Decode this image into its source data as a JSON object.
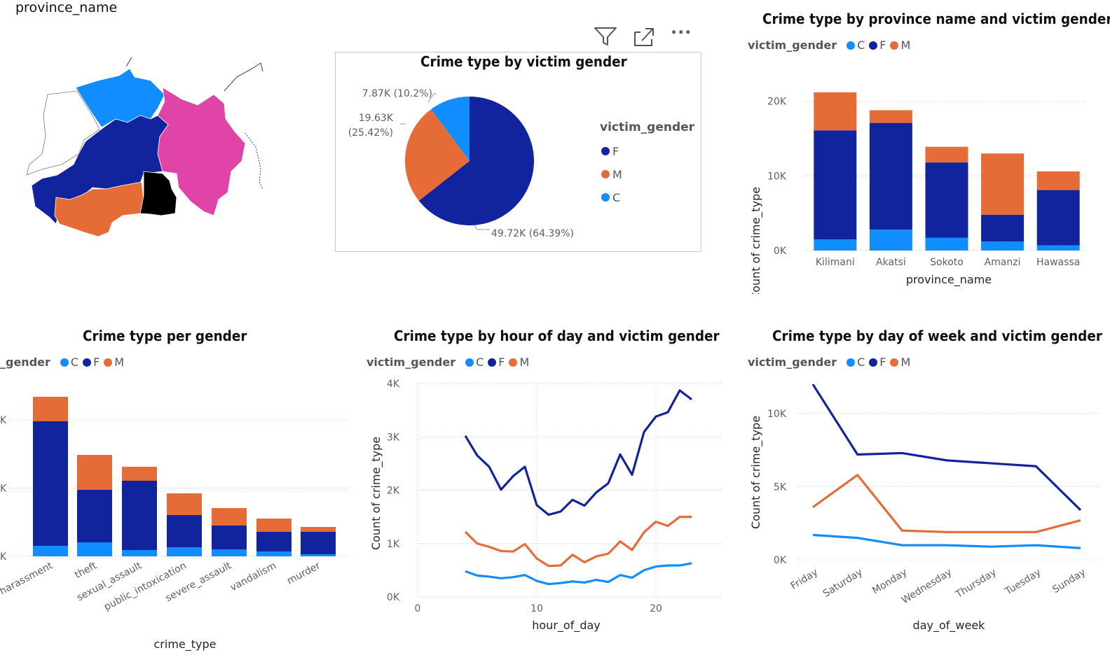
{
  "colors": {
    "C": "#118dff",
    "F": "#12239e",
    "M": "#e66c37",
    "grid": "#c8c6c4"
  },
  "map": {
    "title": "province_name",
    "regions": [
      {
        "name": "light-blue-region",
        "color": "#118dff"
      },
      {
        "name": "magenta-region",
        "color": "#e044a7"
      },
      {
        "name": "dark-blue-region",
        "color": "#12239e"
      },
      {
        "name": "orange-region",
        "color": "#e66c37"
      },
      {
        "name": "black-region",
        "color": "#000000"
      },
      {
        "name": "white-region",
        "color": "#ffffff"
      }
    ]
  },
  "visual_header": {
    "icons": [
      "filter-icon",
      "focus-mode-icon",
      "more-options-icon"
    ],
    "more_label": "···"
  },
  "legend_common": {
    "title": "victim_gender",
    "title_cut": "_gender",
    "items": [
      {
        "key": "C",
        "label": "C"
      },
      {
        "key": "F",
        "label": "F"
      },
      {
        "key": "M",
        "label": "M"
      }
    ]
  },
  "pie": {
    "title": "Crime type by victim gender",
    "legend_title": "victim_gender",
    "legend_items": [
      {
        "key": "F",
        "label": "F"
      },
      {
        "key": "M",
        "label": "M"
      },
      {
        "key": "C",
        "label": "C"
      }
    ],
    "label_f": "49.72K (64.39%)",
    "label_m_1": "19.63K",
    "label_m_2": "(25.42%)",
    "label_c": "7.87K (10.2%)"
  },
  "province_chart": {
    "title": "Crime type by province name and victim gender",
    "ylabel": "Count of crime_type",
    "xlabel": "province_name",
    "yticks": [
      "0K",
      "10K",
      "20K"
    ]
  },
  "crime_chart": {
    "title": "Crime type per gender",
    "xlabel": "crime_type",
    "yticks": [
      "K",
      "K",
      "K"
    ]
  },
  "hour_chart": {
    "title": "Crime type by hour of day and victim gender",
    "ylabel": "Count of crime_type",
    "xlabel": "hour_of_day",
    "yticks": [
      "0K",
      "1K",
      "2K",
      "3K",
      "4K"
    ],
    "xticks": [
      "0",
      "10",
      "20"
    ]
  },
  "day_chart": {
    "title": "Crime type by day of week and victim gender",
    "ylabel": "Count of crime_type",
    "xlabel": "day_of_week",
    "yticks": [
      "0K",
      "5K",
      "10K"
    ]
  },
  "chart_data": [
    {
      "type": "pie",
      "title": "Crime type by victim gender",
      "legend_title": "victim_gender",
      "slices": [
        {
          "name": "F",
          "value": 49720,
          "percent": 64.39
        },
        {
          "name": "M",
          "value": 19630,
          "percent": 25.42
        },
        {
          "name": "C",
          "value": 7870,
          "percent": 10.2
        }
      ]
    },
    {
      "type": "bar",
      "stacked": true,
      "title": "Crime type by province name and victim gender",
      "xlabel": "province_name",
      "ylabel": "Count of crime_type",
      "ylim": [
        0,
        22000
      ],
      "categories": [
        "Kilimani",
        "Akatsi",
        "Sokoto",
        "Amanzi",
        "Hawassa"
      ],
      "series": [
        {
          "name": "C",
          "values": [
            1500,
            2800,
            1700,
            1200,
            700
          ]
        },
        {
          "name": "F",
          "values": [
            14600,
            14300,
            10100,
            3600,
            7400
          ]
        },
        {
          "name": "M",
          "values": [
            5100,
            1700,
            2100,
            8200,
            2500
          ]
        }
      ]
    },
    {
      "type": "bar",
      "stacked": true,
      "title": "Crime type per gender",
      "xlabel": "crime_type",
      "categories": [
        "harassment",
        "theft",
        "sexual_assault",
        "public_intoxication",
        "severe_assault",
        "vandalism",
        "murder"
      ],
      "series": [
        {
          "name": "C",
          "values": [
            1500,
            2000,
            900,
            1300,
            1000,
            700,
            300
          ]
        },
        {
          "name": "F",
          "values": [
            17800,
            7500,
            9900,
            4600,
            3400,
            2800,
            3200
          ]
        },
        {
          "name": "M",
          "values": [
            3500,
            5000,
            2000,
            3100,
            2500,
            1900,
            700
          ]
        }
      ],
      "ylim": [
        0,
        24000
      ]
    },
    {
      "type": "line",
      "title": "Crime type by hour of day and victim gender",
      "xlabel": "hour_of_day",
      "ylabel": "Count of crime_type",
      "xlim": [
        0,
        25
      ],
      "ylim": [
        0,
        4000
      ],
      "x": [
        4,
        5,
        6,
        7,
        8,
        9,
        10,
        11,
        12,
        13,
        14,
        15,
        16,
        17,
        18,
        19,
        20,
        21,
        22,
        23
      ],
      "series": [
        {
          "name": "F",
          "values": [
            3020,
            2650,
            2440,
            2010,
            2260,
            2440,
            1720,
            1540,
            1600,
            1820,
            1710,
            1960,
            2130,
            2670,
            2290,
            3090,
            3380,
            3460,
            3870,
            3700
          ]
        },
        {
          "name": "M",
          "values": [
            1220,
            1000,
            940,
            860,
            850,
            990,
            720,
            580,
            590,
            790,
            650,
            760,
            810,
            1040,
            880,
            1210,
            1410,
            1330,
            1500,
            1500
          ]
        },
        {
          "name": "C",
          "values": [
            480,
            400,
            380,
            350,
            370,
            410,
            300,
            240,
            260,
            290,
            270,
            320,
            280,
            410,
            360,
            500,
            570,
            590,
            590,
            630
          ]
        }
      ]
    },
    {
      "type": "line",
      "title": "Crime type by day of week and victim gender",
      "xlabel": "day_of_week",
      "ylabel": "Count of crime_type",
      "ylim": [
        0,
        12000
      ],
      "categories": [
        "Friday",
        "Saturday",
        "Monday",
        "Wednesday",
        "Thursday",
        "Tuesday",
        "Sunday"
      ],
      "series": [
        {
          "name": "F",
          "values": [
            12000,
            7200,
            7300,
            6800,
            6600,
            6400,
            3400
          ]
        },
        {
          "name": "M",
          "values": [
            3600,
            5800,
            2000,
            1900,
            1900,
            1900,
            2700
          ]
        },
        {
          "name": "C",
          "values": [
            1700,
            1500,
            1000,
            1000,
            900,
            1000,
            800
          ]
        }
      ]
    }
  ]
}
